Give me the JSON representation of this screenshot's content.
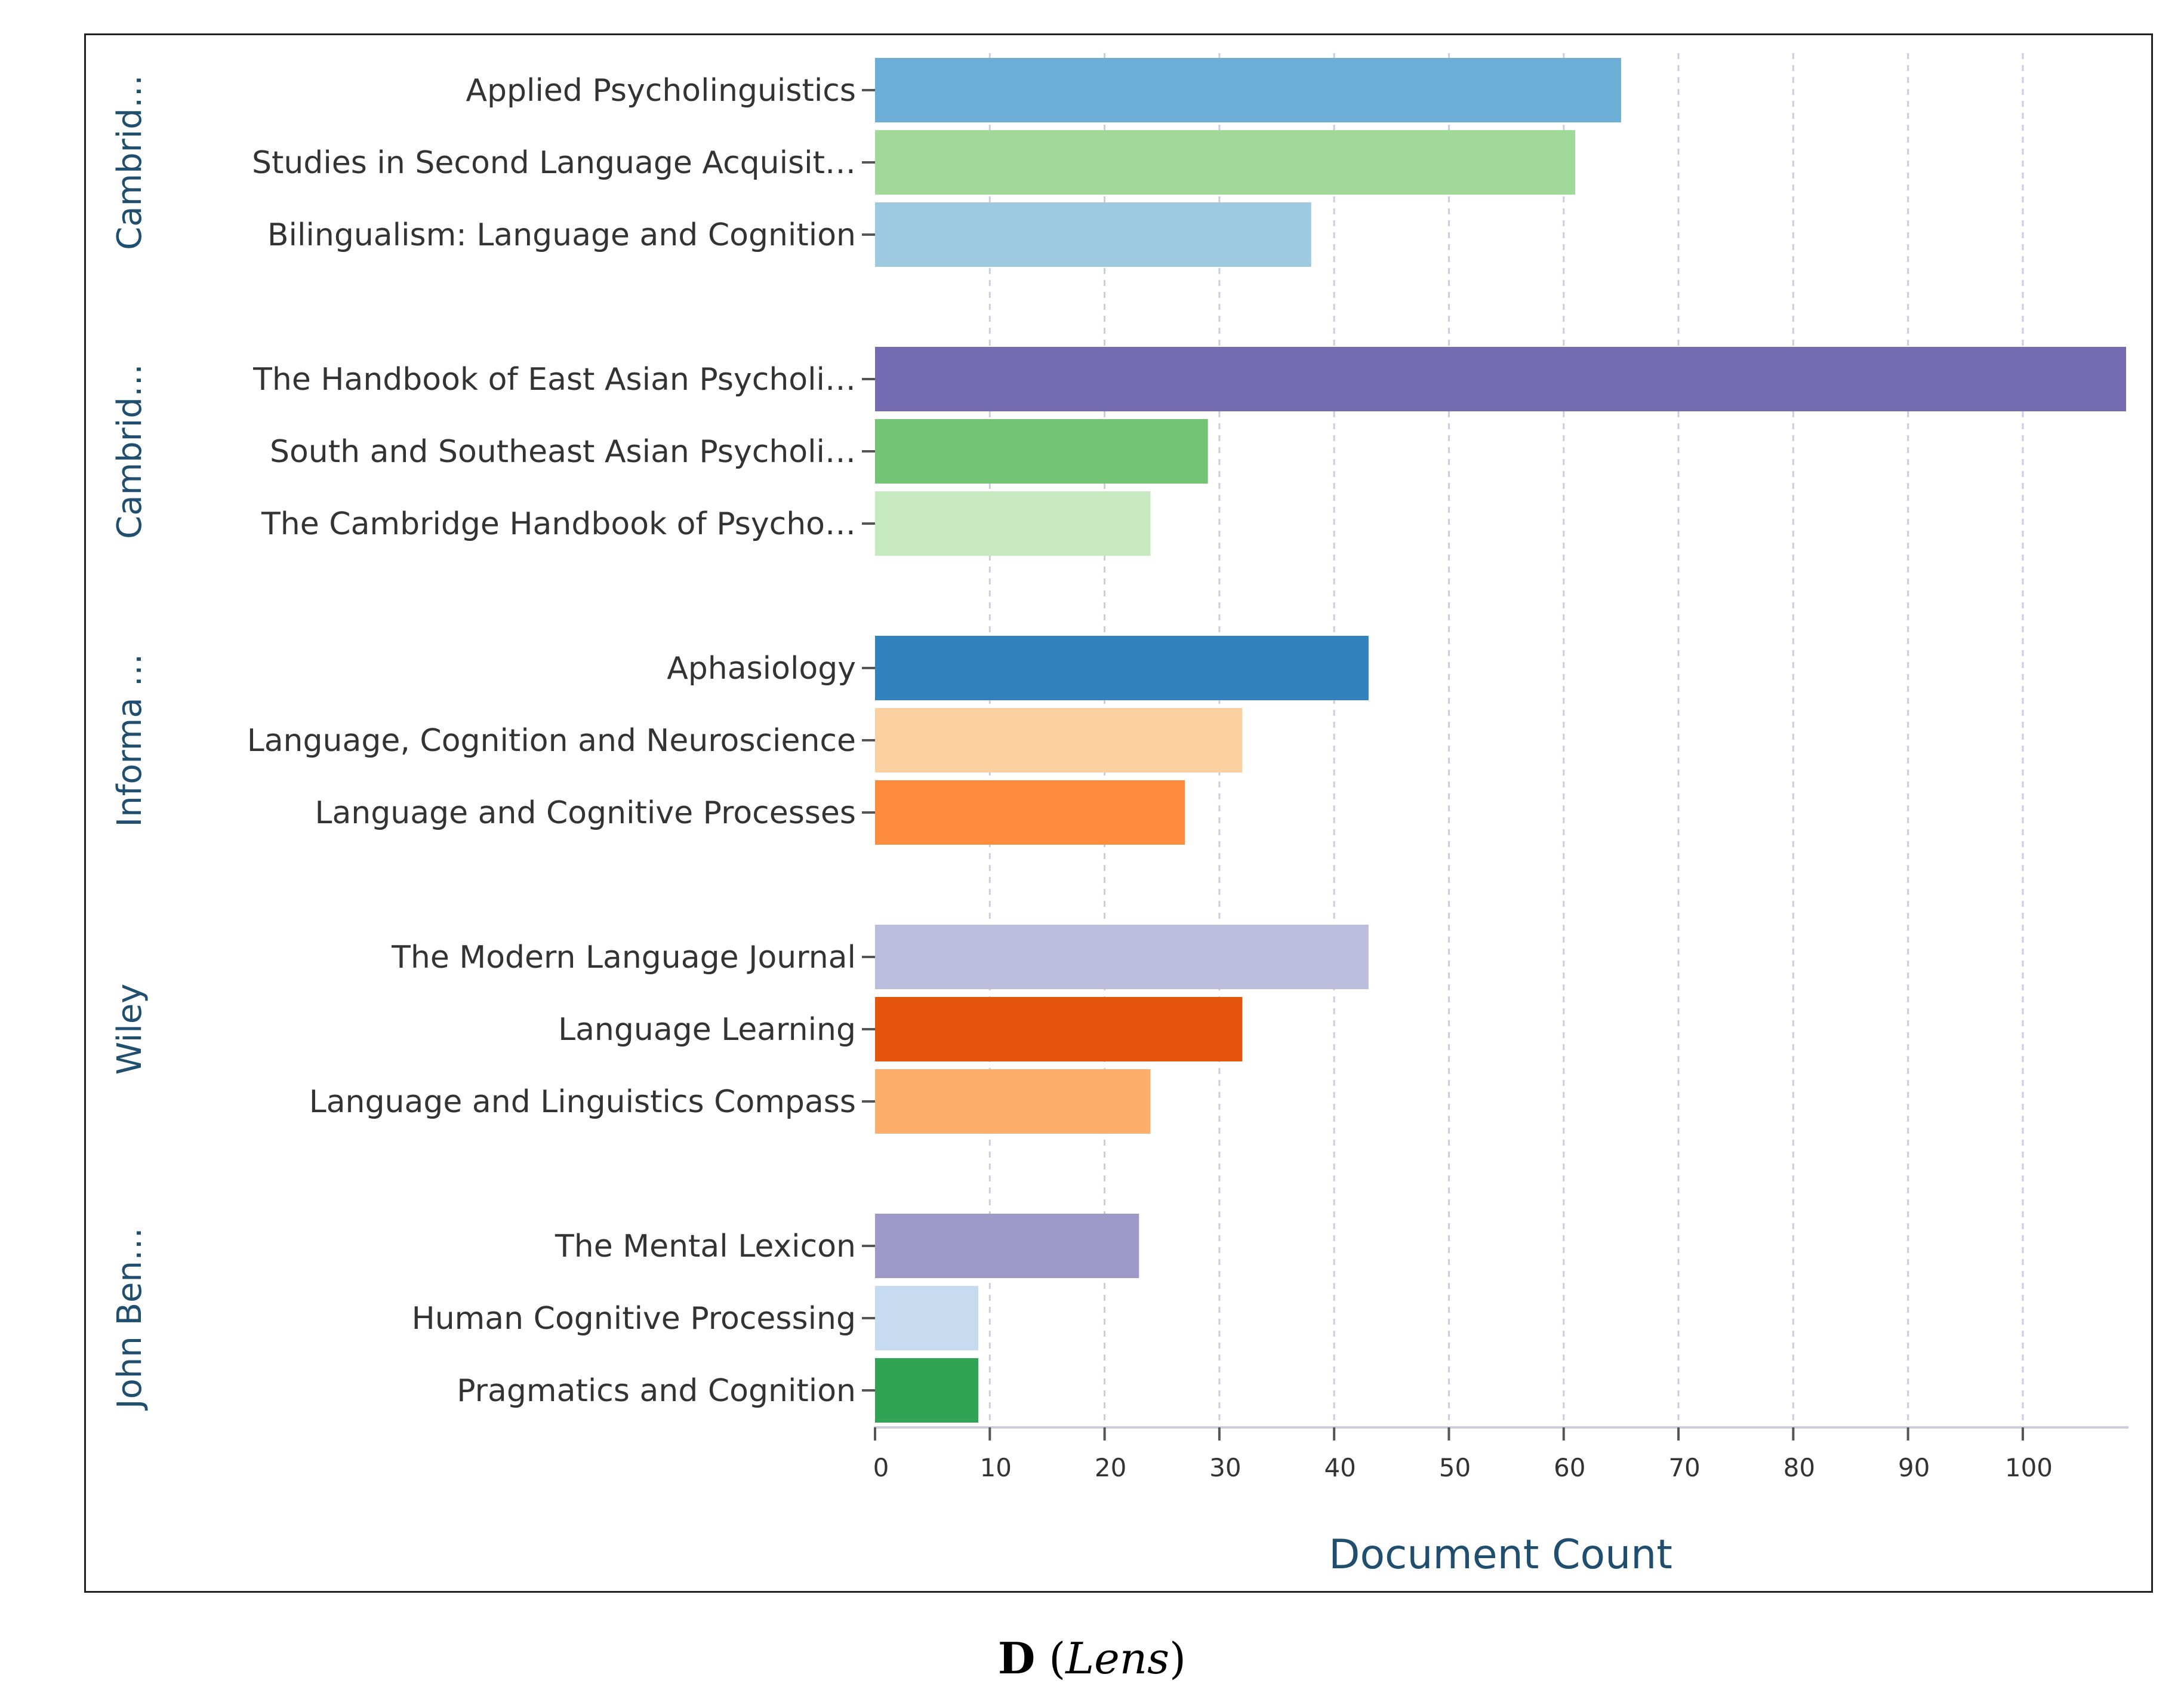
{
  "chart_data": {
    "type": "bar",
    "orientation": "horizontal",
    "xlabel": "Document Count",
    "xlim": [
      0,
      109
    ],
    "xticks": [
      0,
      10,
      20,
      30,
      40,
      50,
      60,
      70,
      80,
      90,
      100
    ],
    "grid": true,
    "groups": [
      {
        "name": "Cambrid…",
        "bars": [
          {
            "label": "Applied Psycholinguistics",
            "value": 65,
            "color": "#6baed6"
          },
          {
            "label": "Studies in Second Language Acquisit…",
            "value": 61,
            "color": "#a1d99b"
          },
          {
            "label": "Bilingualism: Language and Cognition",
            "value": 38,
            "color": "#9ecae1"
          }
        ]
      },
      {
        "name": "Cambrid…",
        "bars": [
          {
            "label": "The Handbook of East Asian Psycholi…",
            "value": 109,
            "color": "#756bb1"
          },
          {
            "label": "South and Southeast Asian Psycholi…",
            "value": 29,
            "color": "#74c476"
          },
          {
            "label": "The Cambridge Handbook of Psycho…",
            "value": 24,
            "color": "#c7e9c0"
          }
        ]
      },
      {
        "name": "Informa …",
        "bars": [
          {
            "label": "Aphasiology",
            "value": 43,
            "color": "#3182bd"
          },
          {
            "label": "Language, Cognition and Neuroscience",
            "value": 32,
            "color": "#fdd0a2"
          },
          {
            "label": "Language and Cognitive Processes",
            "value": 27,
            "color": "#fd8d3c"
          }
        ]
      },
      {
        "name": "Wiley",
        "bars": [
          {
            "label": "The Modern Language Journal",
            "value": 43,
            "color": "#bcbddc"
          },
          {
            "label": "Language Learning",
            "value": 32,
            "color": "#e6550d"
          },
          {
            "label": "Language and Linguistics Compass",
            "value": 24,
            "color": "#fdae6b"
          }
        ]
      },
      {
        "name": "John Ben…",
        "bars": [
          {
            "label": "The Mental Lexicon",
            "value": 23,
            "color": "#9e9ac8"
          },
          {
            "label": "Human Cognitive Processing",
            "value": 9,
            "color": "#c6dbef"
          },
          {
            "label": "Pragmatics and Cognition",
            "value": 9,
            "color": "#31a354"
          }
        ]
      }
    ]
  },
  "caption": {
    "letter": "D",
    "open": " (",
    "source": "Lens",
    "close": ")"
  }
}
